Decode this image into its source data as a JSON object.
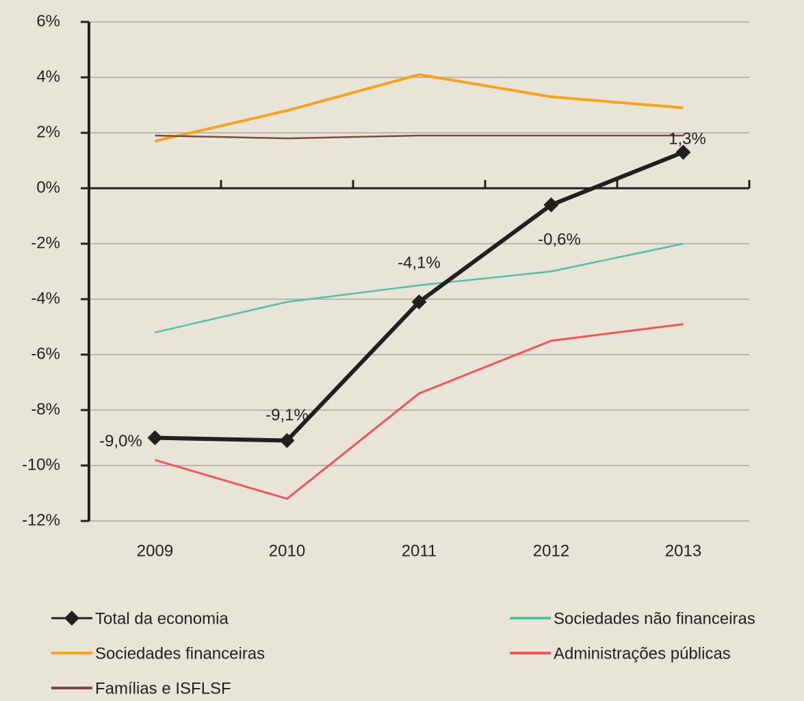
{
  "chart_data": {
    "type": "line",
    "categories": [
      "2009",
      "2010",
      "2011",
      "2012",
      "2013"
    ],
    "ylim": [
      -12,
      6
    ],
    "yticks": [
      {
        "value": -12,
        "label": "-12%"
      },
      {
        "value": -10,
        "label": "-10%"
      },
      {
        "value": -8,
        "label": "-8%"
      },
      {
        "value": -6,
        "label": "-6%"
      },
      {
        "value": -4,
        "label": "-4%"
      },
      {
        "value": -2,
        "label": "-2%"
      },
      {
        "value": 0,
        "label": "0%"
      },
      {
        "value": 2,
        "label": "2%"
      },
      {
        "value": 4,
        "label": "4%"
      },
      {
        "value": 6,
        "label": "6%"
      }
    ],
    "grid": true,
    "series": [
      {
        "name": "Total da economia",
        "color": "#231f20",
        "values": [
          -9.0,
          -9.1,
          -4.1,
          -0.6,
          1.3
        ],
        "value_labels": [
          "-9,0%",
          "-9,1%",
          "-4,1%",
          "-0,6%",
          "1,3%"
        ]
      },
      {
        "name": "Sociedades não financeiras",
        "color": "#4fbfa8",
        "values": [
          -5.2,
          -4.1,
          -3.5,
          -3.0,
          -2.0
        ]
      },
      {
        "name": "Sociedades financeiras",
        "color": "#f7a21b",
        "values": [
          1.7,
          2.8,
          4.1,
          3.3,
          2.9
        ]
      },
      {
        "name": "Administrações públicas",
        "color": "#f05454",
        "values": [
          -9.8,
          -11.2,
          -7.4,
          -5.5,
          -4.9
        ]
      },
      {
        "name": "Famílias e ISFLSF",
        "color": "#7a4a35",
        "values": [
          1.9,
          1.8,
          1.9,
          1.9,
          1.9
        ]
      }
    ]
  }
}
